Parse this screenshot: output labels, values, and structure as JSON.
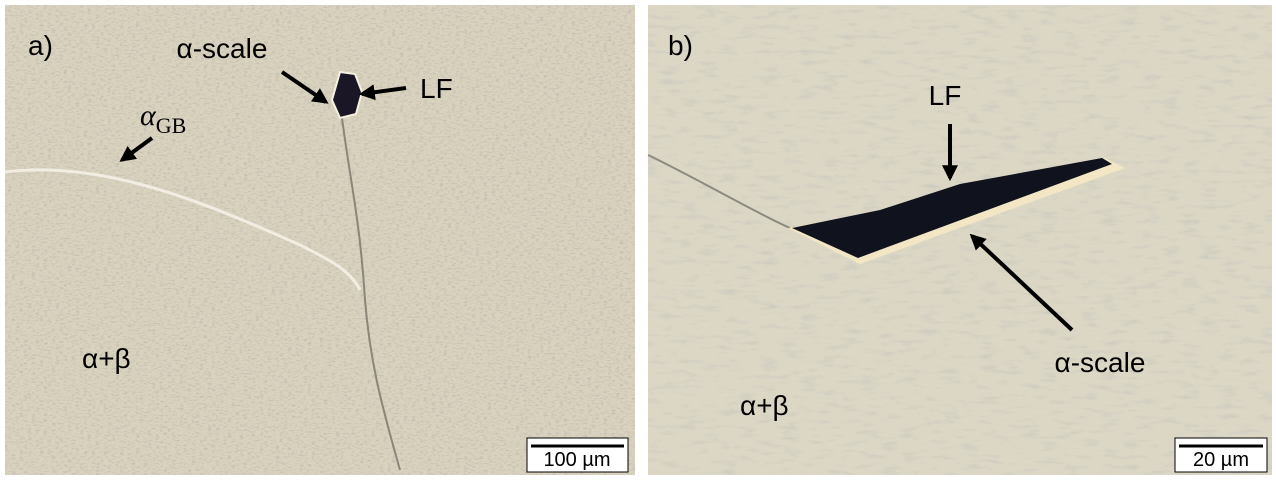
{
  "panels": [
    {
      "id": "a)",
      "labels": {
        "alpha_scale": "α-scale",
        "lf": "LF",
        "alpha_gb": "α",
        "alpha_gb_sub": "GB",
        "phase": "α+β"
      },
      "scale_bar": "100 µm"
    },
    {
      "id": "b)",
      "labels": {
        "lf": "LF",
        "alpha_scale": "α-scale",
        "phase": "α+β"
      },
      "scale_bar": "20 µm"
    }
  ]
}
